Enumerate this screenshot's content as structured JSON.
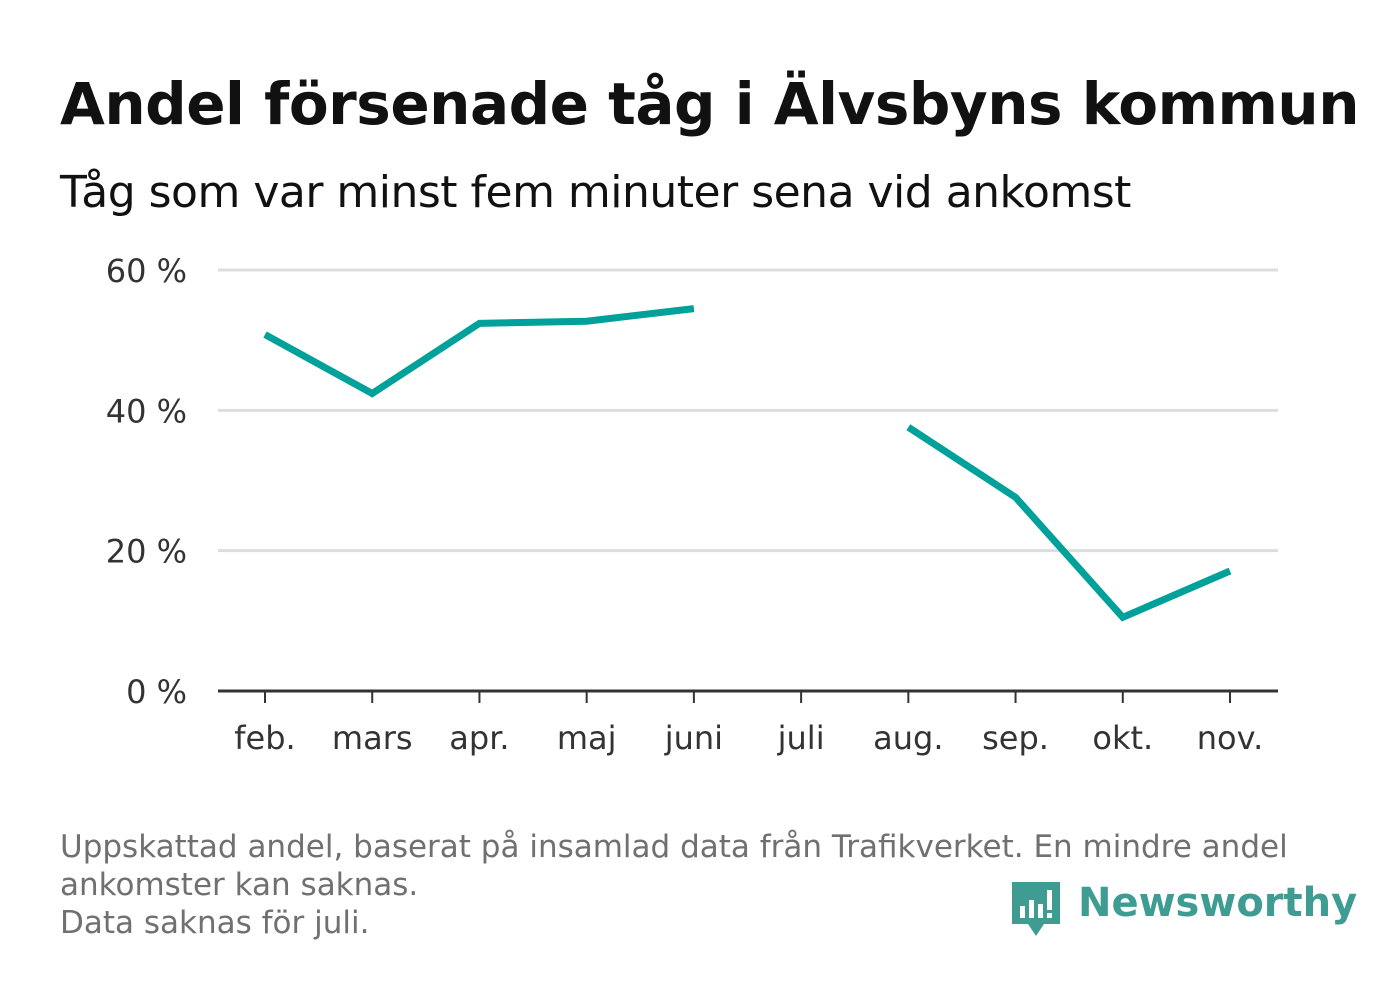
{
  "header": {
    "title": "Andel försenade tåg i Älvsbyns kommun",
    "subtitle": "Tåg som var minst fem minuter sena vid ankomst"
  },
  "footer": {
    "line1": "Uppskattad andel, baserat på insamlad data från Trafikverket. En mindre andel",
    "line2": "ankomster kan saknas.",
    "line3": "Data saknas för juli."
  },
  "brand": {
    "name": "Newsworthy",
    "icon": "newsworthy-logo-icon",
    "color": "#3e9c93"
  },
  "chart_data": {
    "type": "line",
    "title": "Andel försenade tåg i Älvsbyns kommun",
    "subtitle": "Tåg som var minst fem minuter sena vid ankomst",
    "xlabel": "",
    "ylabel": "",
    "categories": [
      "feb.",
      "mars",
      "apr.",
      "maj",
      "juni",
      "juli",
      "aug.",
      "sep.",
      "okt.",
      "nov."
    ],
    "series": [
      {
        "values": [
          50.8,
          42.4,
          52.4,
          52.7,
          54.5,
          null,
          37.6,
          27.6,
          10.5,
          17.1
        ],
        "color": "#00a19a"
      }
    ],
    "ylim": [
      0,
      60
    ],
    "yticks": [
      0,
      20,
      40,
      60
    ],
    "ytick_labels": [
      "0 %",
      "20 %",
      "40 %",
      "60 %"
    ],
    "grid": true,
    "legend": "none"
  }
}
